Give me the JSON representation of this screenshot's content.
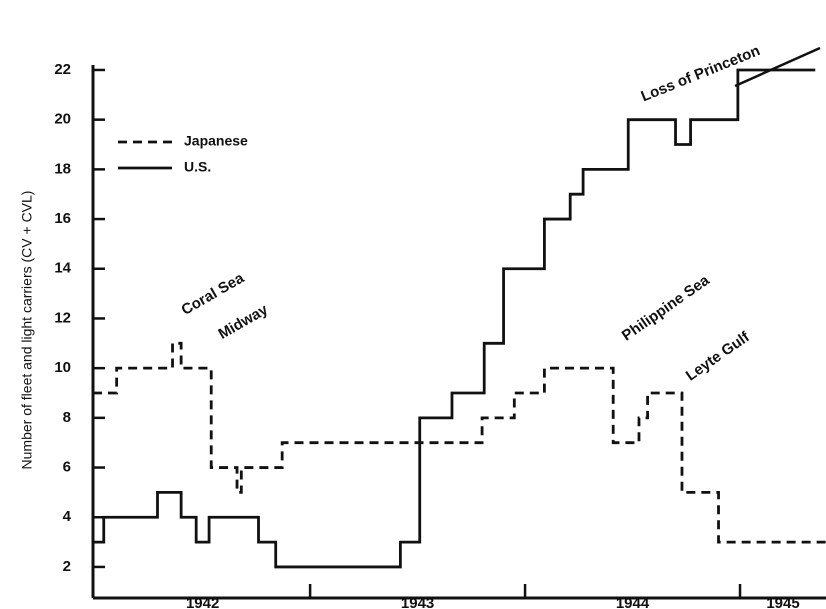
{
  "chart_data": {
    "type": "step",
    "ylabel": "Number of fleet and light carriers (CV + CVL)",
    "xlim": [
      1941.99,
      1945.4
    ],
    "xticks": [
      {
        "value": 1942.5,
        "label": "1942"
      },
      {
        "value": 1943.5,
        "label": "1943"
      },
      {
        "value": 1944.5,
        "label": "1944"
      },
      {
        "value": 1945.2,
        "label": "1945"
      }
    ],
    "year_ticks": [
      1943,
      1944,
      1945
    ],
    "ylim": [
      0.75,
      22.2
    ],
    "yticks": [
      2,
      4,
      6,
      8,
      10,
      12,
      14,
      16,
      18,
      20,
      22
    ],
    "series": [
      {
        "name": "Japanese",
        "color": "#111111",
        "dash": true,
        "x": [
          1941.99,
          1942.1,
          1942.36,
          1942.4,
          1942.54,
          1942.66,
          1942.68,
          1942.87,
          1943.8,
          1943.95,
          1944.09,
          1944.41,
          1944.53,
          1944.57,
          1944.73,
          1944.9,
          1945.4
        ],
        "values": [
          9,
          10,
          11,
          10,
          6,
          5,
          6,
          7,
          8,
          9,
          10,
          7,
          8,
          9,
          5,
          3,
          3
        ]
      },
      {
        "name": "U.S.",
        "color": "#111111",
        "dash": false,
        "x": [
          1941.99,
          1942.04,
          1942.29,
          1942.4,
          1942.47,
          1942.53,
          1942.76,
          1942.84,
          1943.42,
          1943.51,
          1943.66,
          1943.81,
          1943.9,
          1944.09,
          1944.21,
          1944.27,
          1944.48,
          1944.7,
          1944.77,
          1944.99,
          1945.35
        ],
        "values": [
          3,
          4,
          5,
          4,
          3,
          4,
          3,
          2,
          3,
          8,
          9,
          11,
          14,
          16,
          17,
          18,
          20,
          19,
          20,
          22,
          22
        ]
      }
    ],
    "annotations": [
      "Coral Sea",
      "Midway",
      "Philippine Sea",
      "Leyte Gulf",
      "Loss of Princeton"
    ]
  }
}
